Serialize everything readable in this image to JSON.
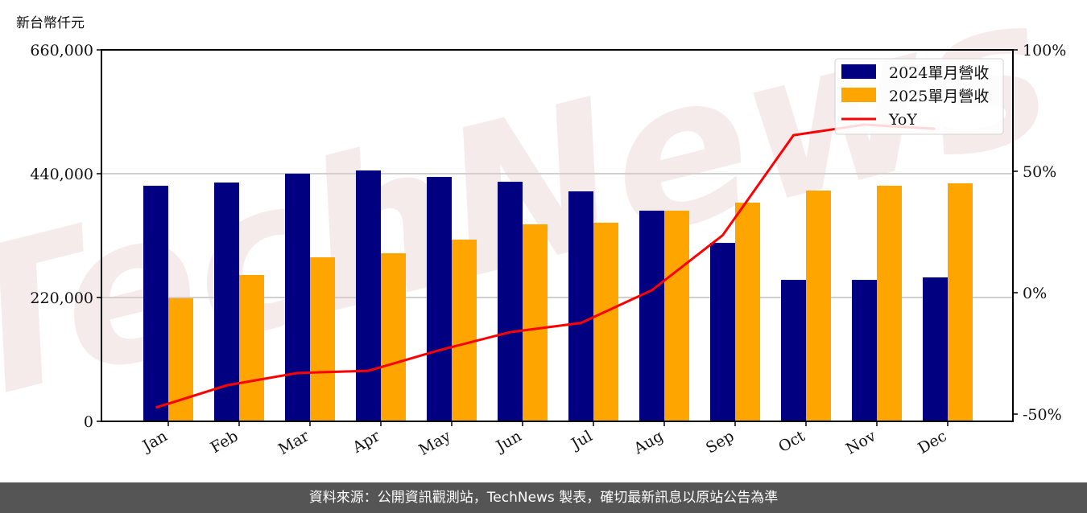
{
  "chart_data": {
    "type": "bar",
    "categories": [
      "Jan",
      "Feb",
      "Mar",
      "Apr",
      "May",
      "Jun",
      "Jul",
      "Aug",
      "Sep",
      "Oct",
      "Nov",
      "Dec"
    ],
    "ylabel": "新台幣仟元",
    "ylim": [
      0,
      660000
    ],
    "yticks": [
      "0",
      "220,000",
      "440,000",
      "660,000"
    ],
    "y2lim": [
      -50,
      100
    ],
    "y2ticks": [
      "-50%",
      "0%",
      "50%",
      "100%"
    ],
    "grid": "horizontal",
    "legend_position": "top-right",
    "series": [
      {
        "name": "2024單月營收",
        "type": "bar",
        "color": "#000080",
        "values": [
          418600,
          424300,
          440000,
          445700,
          434300,
          425700,
          408600,
          374300,
          317100,
          251400,
          251400,
          255700
        ]
      },
      {
        "name": "2025單月營收",
        "type": "bar",
        "color": "#FFA500",
        "values": [
          218600,
          260000,
          291400,
          298600,
          322900,
          350000,
          352900,
          374300,
          388600,
          410000,
          418600,
          422900
        ]
      },
      {
        "name": "YoY",
        "type": "line",
        "axis": "right",
        "unit": "%",
        "color": "#FF0000",
        "values": [
          -47.4,
          -38.4,
          -33.4,
          -32.5,
          -24.2,
          -16.9,
          -13.2,
          0.0,
          22.2,
          62.6,
          66.9,
          65.2
        ]
      }
    ]
  },
  "watermark": "TechNews",
  "footer": "資料來源：公開資訊觀測站，TechNews 製表，確切最新訊息以原站公告為準"
}
